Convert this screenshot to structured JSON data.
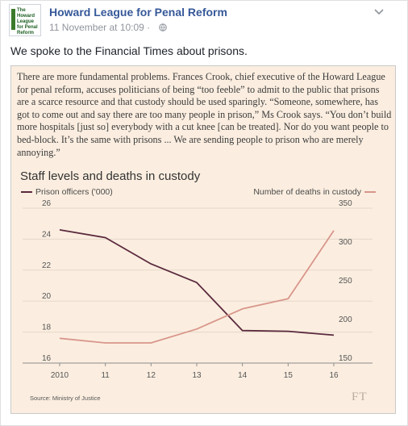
{
  "post": {
    "page_name": "Howard League for Penal Reform",
    "timestamp": "11 November at 10:09 ·",
    "text": "We spoke to the Financial Times about prisons.",
    "avatar_text": "The Howard League for Penal Reform"
  },
  "article": {
    "quote": "There are more fundamental problems. Frances Crook, chief executive of the Howard League for penal reform, accuses politicians of being “too feeble” to admit to the public that prisons are a scarce resource and that custody should be used sparingly. “Someone, somewhere, has got to come out and say there are too many people in prison,” Ms Crook says. “You don’t build more hospitals [just so] everybody with a cut knee [can be treated]. Nor do you want people to bed-block. It’s the same with prisons ... We are sending people to prison who are merely annoying.”",
    "source": "Source: Ministry of Justice",
    "logo": "FT"
  },
  "chart_data": {
    "type": "line",
    "title": "Staff levels and deaths in custody",
    "x": [
      "2010",
      "11",
      "12",
      "13",
      "14",
      "15",
      "16"
    ],
    "series": [
      {
        "name": "Prison officers ('000)",
        "axis": "left",
        "color": "#5b2a3e",
        "values": [
          24.6,
          24.1,
          22.4,
          21.2,
          18.1,
          18.05,
          17.8
        ]
      },
      {
        "name": "Number of deaths in custody",
        "axis": "right",
        "color": "#d9968b",
        "values": [
          182,
          176,
          176,
          194,
          220,
          233,
          321
        ]
      }
    ],
    "left_axis": {
      "ticks": [
        "26",
        "24",
        "22",
        "20",
        "18",
        "16"
      ],
      "ylim": [
        16,
        26
      ]
    },
    "right_axis": {
      "ticks": [
        "350",
        "300",
        "250",
        "200",
        "150"
      ],
      "ylim": [
        150,
        350
      ]
    },
    "grid": true,
    "legend": "top"
  }
}
